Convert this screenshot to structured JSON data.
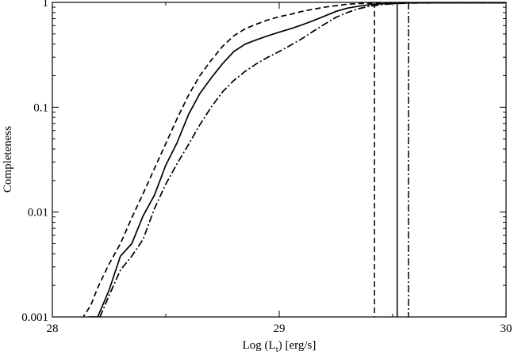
{
  "chart_data": {
    "type": "line",
    "xlabel": "Log (L",
    "xlabel_sub": "t",
    "xlabel_suffix": ") [erg/s]",
    "ylabel": "Completeness",
    "xlim": [
      28,
      30
    ],
    "ylim": [
      0.001,
      1
    ],
    "yscale": "log",
    "x_ticks": [
      28,
      29,
      30
    ],
    "x_tick_labels": [
      "28",
      "29",
      "30"
    ],
    "y_ticks": [
      0.001,
      0.01,
      0.1,
      1
    ],
    "y_tick_labels": [
      "0.001",
      "0.01",
      "0.1",
      "1"
    ],
    "grid": false,
    "line_color": "#000000",
    "series": [
      {
        "style": "solid",
        "x": [
          28.16,
          28.2,
          28.25,
          28.3,
          28.35,
          28.4,
          28.45,
          28.5,
          28.55,
          28.6,
          28.65,
          28.7,
          28.75,
          28.8,
          28.85,
          28.9,
          28.95,
          29.0,
          29.05,
          29.1,
          29.15,
          29.2,
          29.25,
          29.3,
          29.35,
          29.4,
          29.45,
          29.5,
          29.55,
          29.6,
          29.7,
          29.8,
          29.9,
          30.0
        ],
        "y": [
          0.001,
          0.001,
          0.0018,
          0.0038,
          0.005,
          0.0092,
          0.0145,
          0.028,
          0.046,
          0.085,
          0.135,
          0.19,
          0.26,
          0.34,
          0.4,
          0.44,
          0.48,
          0.52,
          0.56,
          0.61,
          0.67,
          0.74,
          0.82,
          0.88,
          0.92,
          0.95,
          0.97,
          0.98,
          0.985,
          0.99,
          0.99,
          0.99,
          0.99,
          0.99
        ]
      },
      {
        "style": "dashed",
        "x": [
          28.13,
          28.17,
          28.2,
          28.25,
          28.3,
          28.35,
          28.4,
          28.45,
          28.5,
          28.55,
          28.6,
          28.65,
          28.7,
          28.75,
          28.8,
          28.85,
          28.9,
          28.95,
          29.0,
          29.05,
          29.1,
          29.15,
          29.2,
          29.25,
          29.3,
          29.35,
          29.4,
          29.5,
          29.6,
          29.7,
          29.8,
          29.9,
          30.0
        ],
        "y": [
          0.00095,
          0.0013,
          0.0019,
          0.0032,
          0.005,
          0.0088,
          0.015,
          0.026,
          0.045,
          0.078,
          0.13,
          0.2,
          0.28,
          0.38,
          0.48,
          0.56,
          0.62,
          0.68,
          0.73,
          0.77,
          0.82,
          0.86,
          0.9,
          0.93,
          0.96,
          0.975,
          0.98,
          0.99,
          0.99,
          0.99,
          0.99,
          0.99,
          0.99
        ]
      },
      {
        "style": "dashdot",
        "x": [
          28.21,
          28.25,
          28.3,
          28.35,
          28.4,
          28.45,
          28.5,
          28.55,
          28.6,
          28.65,
          28.7,
          28.75,
          28.8,
          28.85,
          28.9,
          28.95,
          29.0,
          29.05,
          29.1,
          29.15,
          29.2,
          29.25,
          29.3,
          29.35,
          29.4,
          29.45,
          29.5,
          29.55,
          29.6,
          29.7,
          29.8,
          29.9,
          30.0
        ],
        "y": [
          0.001,
          0.0016,
          0.0028,
          0.0038,
          0.0055,
          0.0108,
          0.0185,
          0.029,
          0.044,
          0.068,
          0.1,
          0.14,
          0.18,
          0.22,
          0.26,
          0.3,
          0.34,
          0.39,
          0.45,
          0.53,
          0.62,
          0.72,
          0.8,
          0.87,
          0.92,
          0.95,
          0.97,
          0.98,
          0.985,
          0.99,
          0.99,
          0.99,
          0.99
        ]
      }
    ],
    "vertical_lines": [
      {
        "style": "dashed",
        "x": 29.42
      },
      {
        "style": "solid",
        "x": 29.52
      },
      {
        "style": "dashdot",
        "x": 29.57
      }
    ]
  }
}
